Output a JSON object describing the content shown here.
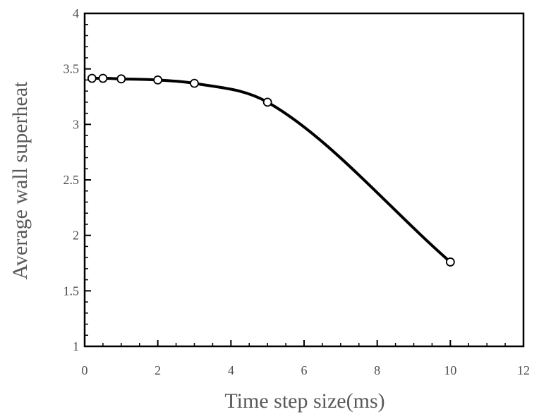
{
  "chart_data": {
    "type": "line",
    "title": "",
    "xlabel": "Time step size(ms)",
    "ylabel": "Average  wall superheat",
    "xlim": [
      0,
      12
    ],
    "ylim": [
      1,
      4
    ],
    "x_ticks": [
      "0",
      "2",
      "4",
      "6",
      "8",
      "10",
      "12"
    ],
    "y_ticks": [
      "1",
      "1.5",
      "2",
      "2.5",
      "3",
      "3.5",
      "4"
    ],
    "x_minor_step": 0.5,
    "y_minor_step": 0.1,
    "grid": false,
    "legend": "none",
    "marker": "open-circle",
    "line_color": "#000000",
    "series": [
      {
        "x": [
          0.2,
          0.5,
          1,
          2,
          3,
          5,
          10
        ],
        "y": [
          3.415,
          3.415,
          3.41,
          3.4,
          3.37,
          3.2,
          1.76
        ]
      }
    ]
  }
}
